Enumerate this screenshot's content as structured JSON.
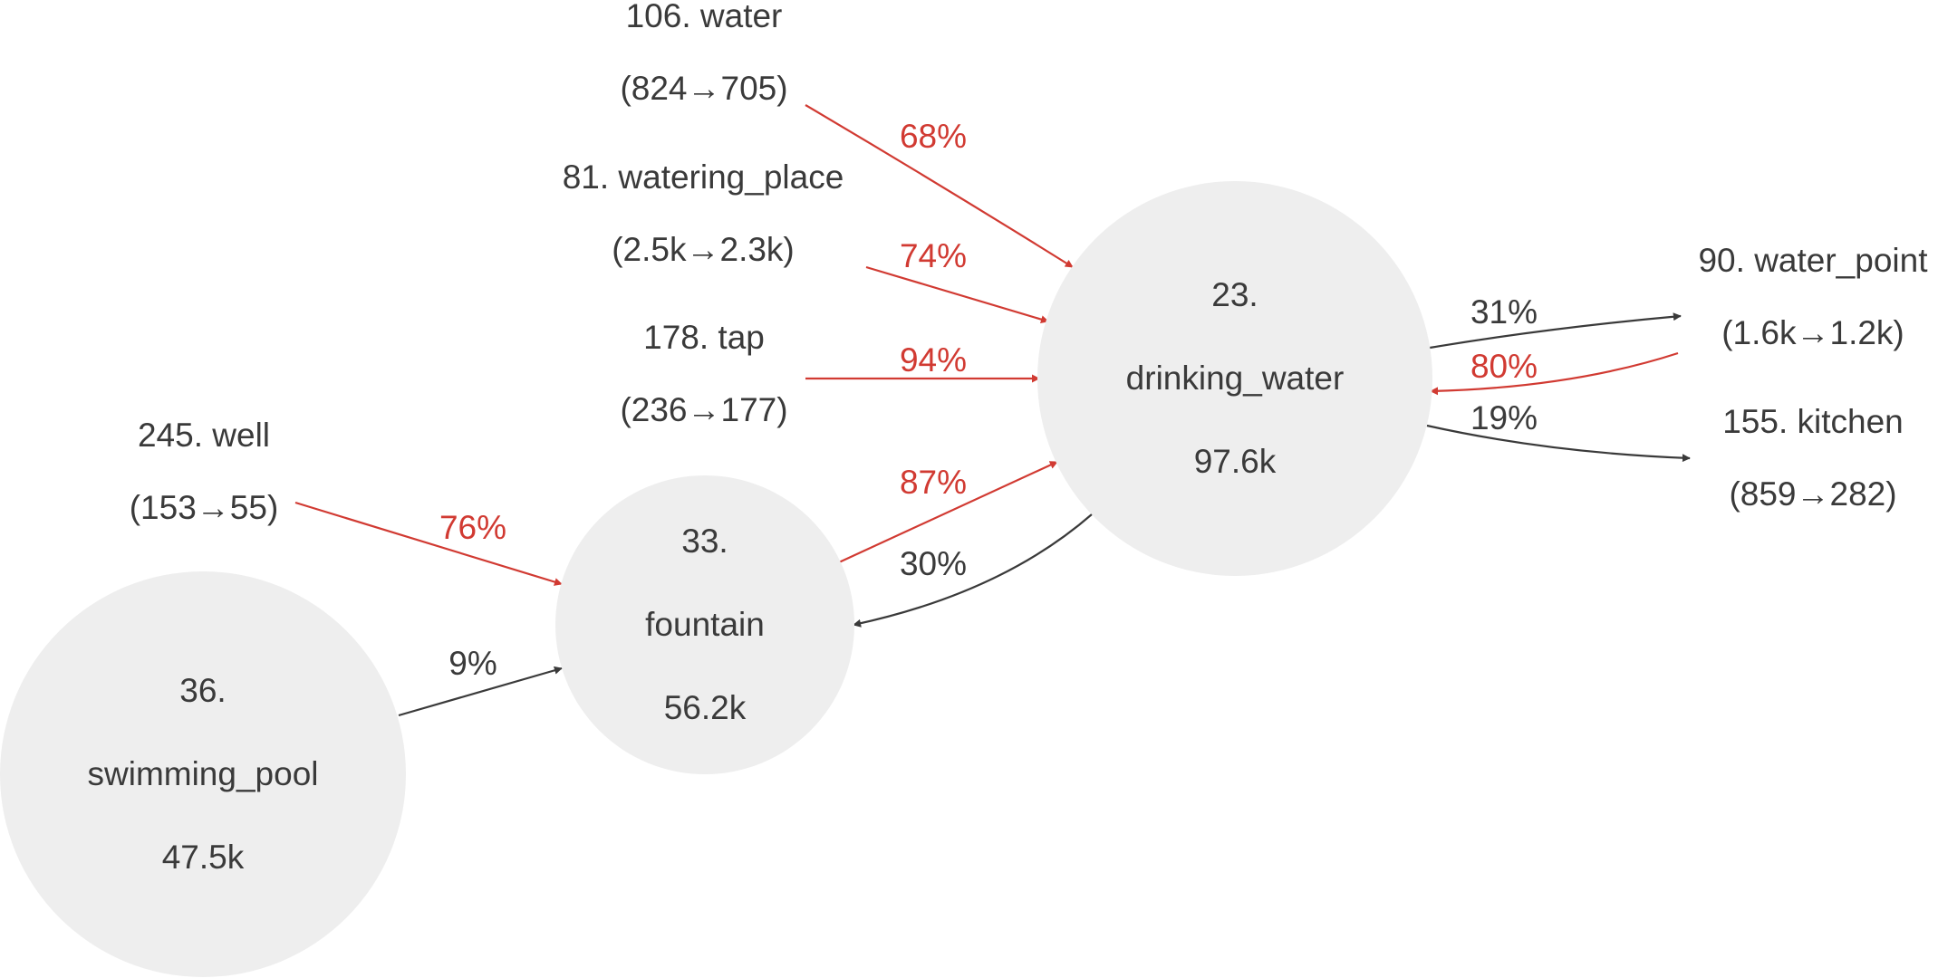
{
  "colors": {
    "highlight": "#d13a32",
    "normal": "#3a3a3a",
    "node_fill": "#eeeeee",
    "text": "#3a3a3a"
  },
  "nodes": [
    {
      "id": "drinking_water",
      "rank": "23.",
      "name": "drinking_water",
      "count": "97.6k"
    },
    {
      "id": "fountain",
      "rank": "33.",
      "name": "fountain",
      "count": "56.2k"
    },
    {
      "id": "swimming_pool",
      "rank": "36.",
      "name": "swimming_pool",
      "count": "47.5k"
    }
  ],
  "sources": [
    {
      "id": "water",
      "title": "106. water",
      "range": "(824→705)"
    },
    {
      "id": "watering_place",
      "title": "81. watering_place",
      "range": "(2.5k→2.3k)"
    },
    {
      "id": "tap",
      "title": "178. tap",
      "range": "(236→177)"
    },
    {
      "id": "well",
      "title": "245. well",
      "range": "(153→55)"
    },
    {
      "id": "water_point",
      "title": "90. water_point",
      "range": "(1.6k→1.2k)"
    },
    {
      "id": "kitchen",
      "title": "155. kitchen",
      "range": "(859→282)"
    }
  ],
  "edges": [
    {
      "from": "water",
      "to": "drinking_water",
      "label": "68%",
      "highlight": true
    },
    {
      "from": "watering_place",
      "to": "drinking_water",
      "label": "74%",
      "highlight": true
    },
    {
      "from": "tap",
      "to": "drinking_water",
      "label": "94%",
      "highlight": true
    },
    {
      "from": "fountain",
      "to": "drinking_water",
      "label": "87%",
      "highlight": true
    },
    {
      "from": "drinking_water",
      "to": "fountain",
      "label": "30%",
      "highlight": false
    },
    {
      "from": "well",
      "to": "fountain",
      "label": "76%",
      "highlight": true
    },
    {
      "from": "swimming_pool",
      "to": "fountain",
      "label": "9%",
      "highlight": false
    },
    {
      "from": "drinking_water",
      "to": "water_point",
      "label": "31%",
      "highlight": false
    },
    {
      "from": "water_point",
      "to": "drinking_water",
      "label": "80%",
      "highlight": true
    },
    {
      "from": "drinking_water",
      "to": "kitchen",
      "label": "19%",
      "highlight": false
    }
  ]
}
